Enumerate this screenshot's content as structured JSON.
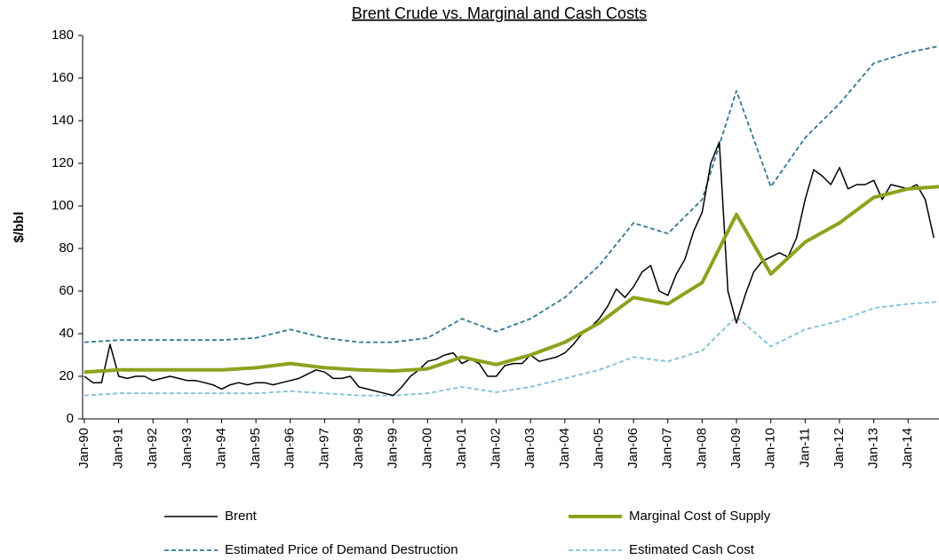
{
  "chart_data": {
    "type": "line",
    "title": "Brent Crude vs. Marginal and Cash Costs",
    "ylabel": "$/bbl",
    "xlim": [
      1989.95,
      2014.9
    ],
    "ylim": [
      0,
      180
    ],
    "yticks": [
      0,
      20,
      40,
      60,
      80,
      100,
      120,
      140,
      160,
      180
    ],
    "xticks": [
      {
        "value": 1990,
        "label": "Jan-90"
      },
      {
        "value": 1991,
        "label": "Jan-91"
      },
      {
        "value": 1992,
        "label": "Jan-92"
      },
      {
        "value": 1993,
        "label": "Jan-93"
      },
      {
        "value": 1994,
        "label": "Jan-94"
      },
      {
        "value": 1995,
        "label": "Jan-95"
      },
      {
        "value": 1996,
        "label": "Jan-96"
      },
      {
        "value": 1997,
        "label": "Jan-97"
      },
      {
        "value": 1998,
        "label": "Jan-98"
      },
      {
        "value": 1999,
        "label": "Jan-99"
      },
      {
        "value": 2000,
        "label": "Jan-00"
      },
      {
        "value": 2001,
        "label": "Jan-01"
      },
      {
        "value": 2002,
        "label": "Jan-02"
      },
      {
        "value": 2003,
        "label": "Jan-03"
      },
      {
        "value": 2004,
        "label": "Jan-04"
      },
      {
        "value": 2005,
        "label": "Jan-05"
      },
      {
        "value": 2006,
        "label": "Jan-06"
      },
      {
        "value": 2007,
        "label": "Jan-07"
      },
      {
        "value": 2008,
        "label": "Jan-08"
      },
      {
        "value": 2009,
        "label": "Jan-09"
      },
      {
        "value": 2010,
        "label": "Jan-10"
      },
      {
        "value": 2011,
        "label": "Jan-11"
      },
      {
        "value": 2012,
        "label": "Jan-12"
      },
      {
        "value": 2013,
        "label": "Jan-13"
      },
      {
        "value": 2014,
        "label": "Jan-14"
      }
    ],
    "series": [
      {
        "name": "Brent",
        "color": "#000000",
        "width": 1.5,
        "dash": false,
        "x": [
          1990,
          1990.25,
          1990.5,
          1990.75,
          1991,
          1991.25,
          1991.5,
          1991.75,
          1992,
          1992.25,
          1992.5,
          1992.75,
          1993,
          1993.25,
          1993.5,
          1993.75,
          1994,
          1994.25,
          1994.5,
          1994.75,
          1995,
          1995.25,
          1995.5,
          1995.75,
          1996,
          1996.25,
          1996.5,
          1996.75,
          1997,
          1997.25,
          1997.5,
          1997.75,
          1998,
          1998.25,
          1998.5,
          1998.75,
          1999,
          1999.25,
          1999.5,
          1999.75,
          2000,
          2000.25,
          2000.5,
          2000.75,
          2001,
          2001.25,
          2001.5,
          2001.75,
          2002,
          2002.25,
          2002.5,
          2002.75,
          2003,
          2003.25,
          2003.5,
          2003.75,
          2004,
          2004.25,
          2004.5,
          2004.75,
          2005,
          2005.25,
          2005.5,
          2005.75,
          2006,
          2006.25,
          2006.5,
          2006.75,
          2007,
          2007.25,
          2007.5,
          2007.75,
          2008,
          2008.25,
          2008.5,
          2008.75,
          2009,
          2009.25,
          2009.5,
          2009.75,
          2010,
          2010.25,
          2010.5,
          2010.75,
          2011,
          2011.25,
          2011.5,
          2011.75,
          2012,
          2012.25,
          2012.5,
          2012.75,
          2013,
          2013.25,
          2013.5,
          2013.75,
          2014,
          2014.25,
          2014.5,
          2014.75
        ],
        "values": [
          20,
          17,
          17,
          35,
          20,
          19,
          20,
          20,
          18,
          19,
          20,
          19,
          18,
          18,
          17,
          16,
          14,
          16,
          17,
          16,
          17,
          17,
          16,
          17,
          18,
          19,
          21,
          23,
          22,
          19,
          19,
          20,
          15,
          14,
          13,
          12,
          11,
          15,
          20,
          23,
          27,
          28,
          30,
          31,
          26,
          28,
          26,
          20,
          20,
          25,
          26,
          26,
          30,
          27,
          28,
          29,
          31,
          35,
          40,
          43,
          47,
          53,
          61,
          57,
          62,
          69,
          72,
          60,
          58,
          68,
          75,
          88,
          97,
          120,
          130,
          60,
          45,
          58,
          69,
          74,
          76,
          78,
          76,
          85,
          103,
          117,
          114,
          110,
          118,
          108,
          110,
          110,
          112,
          103,
          110,
          109,
          108,
          110,
          103,
          85
        ]
      },
      {
        "name": "Marginal Cost of Supply",
        "color": "#8ca21e",
        "width": 4,
        "dash": false,
        "x": [
          1990,
          1991,
          1992,
          1993,
          1994,
          1995,
          1996,
          1997,
          1998,
          1999,
          2000,
          2001,
          2002,
          2003,
          2004,
          2005,
          2006,
          2007,
          2008,
          2009,
          2010,
          2011,
          2012,
          2013,
          2014,
          2014.9
        ],
        "values": [
          22,
          23,
          23,
          23,
          23,
          24,
          26,
          24,
          23,
          22.5,
          23.5,
          29,
          25.5,
          30,
          36,
          45,
          57,
          54,
          64,
          96,
          68,
          83,
          92,
          104,
          108,
          109
        ]
      },
      {
        "name": "Estimated Price of Demand Destruction",
        "color": "#2e7890",
        "width": 1.8,
        "dash": true,
        "x": [
          1990,
          1991,
          1992,
          1993,
          1994,
          1995,
          1996,
          1997,
          1998,
          1999,
          2000,
          2001,
          2002,
          2003,
          2004,
          2005,
          2006,
          2007,
          2008,
          2009,
          2010,
          2011,
          2012,
          2013,
          2014,
          2014.9
        ],
        "values": [
          36,
          37,
          37,
          37,
          37,
          38,
          42,
          38,
          36,
          36,
          38,
          47,
          41,
          47,
          57,
          72,
          92,
          87,
          103,
          154,
          109,
          132,
          148,
          167,
          172,
          175
        ]
      },
      {
        "name": "Estimated Cash Cost",
        "color": "#7fbfd8",
        "width": 1.8,
        "dash": true,
        "x": [
          1990,
          1991,
          1992,
          1993,
          1994,
          1995,
          1996,
          1997,
          1998,
          1999,
          2000,
          2001,
          2002,
          2003,
          2004,
          2005,
          2006,
          2007,
          2008,
          2009,
          2010,
          2011,
          2012,
          2013,
          2014,
          2014.9
        ],
        "values": [
          11,
          12,
          12,
          12,
          12,
          12,
          13,
          12,
          11,
          11,
          12,
          15,
          12.5,
          15,
          19,
          23,
          29,
          27,
          32,
          48,
          34,
          42,
          46,
          52,
          54,
          55
        ]
      }
    ]
  }
}
